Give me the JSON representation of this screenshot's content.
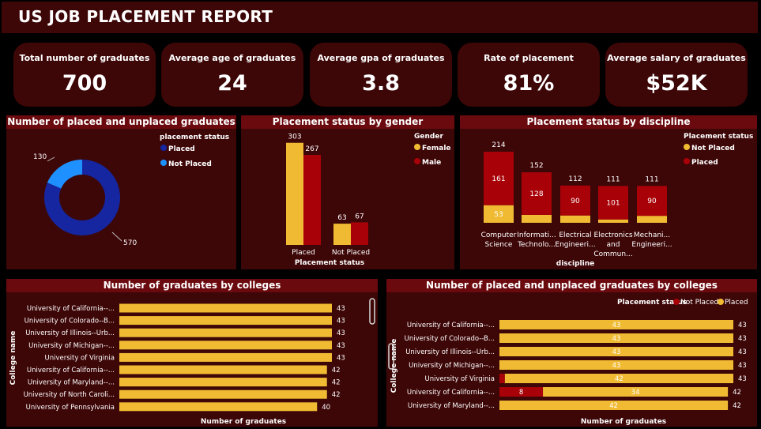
{
  "report_title": "US JOB PLACEMENT REPORT",
  "kpis": [
    {
      "label": "Total number of graduates",
      "value": "700"
    },
    {
      "label": "Average age of graduates",
      "value": "24"
    },
    {
      "label": "Average gpa of graduates",
      "value": "3.8"
    },
    {
      "label": "Rate of placement",
      "value": "81%"
    },
    {
      "label": "Average salary of graduates",
      "value": "$52K"
    }
  ],
  "colors": {
    "placed_donut": "#1526a0",
    "not_placed_donut": "#1e90ff",
    "female": "#f0bb33",
    "male": "#a80208",
    "panel_bg": "#3d0607",
    "title_bg": "#6b0a0e"
  },
  "chart_data": [
    {
      "type": "pie",
      "title": "Number of placed and unplaced graduates",
      "legend_title": "placement status",
      "legend_position": "right",
      "labels": [
        "Placed",
        "Not Placed"
      ],
      "values": [
        570,
        130
      ],
      "value_labels": [
        "570",
        "130"
      ]
    },
    {
      "type": "bar",
      "title": "Placement status by gender",
      "xlabel": "Placement status",
      "legend_title": "Gender",
      "legend_position": "right",
      "categories": [
        "Placed",
        "Not Placed"
      ],
      "series": [
        {
          "name": "Female",
          "values": [
            303,
            63
          ],
          "value_labels": [
            "303",
            "63"
          ]
        },
        {
          "name": "Male",
          "values": [
            267,
            67
          ],
          "value_labels": [
            "267",
            "67"
          ]
        }
      ],
      "ylim": [
        0,
        330
      ]
    },
    {
      "type": "bar",
      "stacked": true,
      "title": "Placement status by discipline",
      "xlabel": "discipline",
      "legend_title": "Placement status",
      "legend_position": "top-right",
      "legend": [
        "Not Placed",
        "Placed"
      ],
      "categories": [
        [
          "Computer",
          "Science"
        ],
        [
          "Informati...",
          "Technolo..."
        ],
        [
          "Electrical",
          "Engineeri..."
        ],
        [
          "Electronics",
          "and",
          "Commun..."
        ],
        [
          "Mechani...",
          "Engineeri..."
        ]
      ],
      "totals": [
        214,
        152,
        112,
        111,
        111
      ],
      "total_labels": [
        "214",
        "152",
        "112",
        "111",
        "111"
      ],
      "series": [
        {
          "name": "Not Placed",
          "values": [
            53,
            24,
            22,
            10,
            21
          ],
          "value_labels": [
            "53",
            "",
            "",
            "",
            ""
          ]
        },
        {
          "name": "Placed",
          "values": [
            161,
            128,
            90,
            101,
            90
          ],
          "value_labels": [
            "161",
            "128",
            "90",
            "101",
            "90"
          ]
        }
      ],
      "ylim": [
        0,
        214
      ]
    },
    {
      "type": "bar",
      "orientation": "horizontal",
      "title": "Number of graduates by colleges",
      "xlabel": "Number of graduates",
      "ylabel": "College name",
      "categories": [
        "University of California--...",
        "University of Colorado--B...",
        "University of Illinois--Urb...",
        "University of Michigan--...",
        "University of Virginia",
        "University of California--...",
        "University of Maryland--...",
        "University of North Caroli...",
        "University of Pennsylvania"
      ],
      "values": [
        43,
        43,
        43,
        43,
        43,
        42,
        42,
        42,
        40
      ],
      "value_labels": [
        "43",
        "43",
        "43",
        "43",
        "43",
        "42",
        "42",
        "42",
        "40"
      ],
      "xlim": [
        0,
        43
      ]
    },
    {
      "type": "bar",
      "orientation": "horizontal",
      "stacked": true,
      "title": "Number of placed and unplaced graduates by colleges",
      "xlabel": "Number of graduates",
      "ylabel": "College name",
      "legend_title": "Placement status",
      "legend_position": "top-right",
      "legend": [
        "Not Placed",
        "Placed"
      ],
      "categories": [
        "University of California--...",
        "University of Colorado--B...",
        "University of Illinois--Urb...",
        "University of Michigan--...",
        "University of Virginia",
        "University of California--...",
        "University of Maryland--..."
      ],
      "series": [
        {
          "name": "Not Placed",
          "values": [
            0,
            0,
            0,
            0,
            1,
            8,
            0
          ],
          "value_labels": [
            "",
            "",
            "",
            "",
            "",
            "8",
            ""
          ]
        },
        {
          "name": "Placed",
          "values": [
            43,
            43,
            43,
            43,
            42,
            34,
            42
          ],
          "value_labels": [
            "43",
            "43",
            "43",
            "43",
            "42",
            "34",
            "42"
          ]
        }
      ],
      "totals": [
        43,
        43,
        43,
        43,
        43,
        42,
        42
      ],
      "total_labels": [
        "43",
        "43",
        "43",
        "43",
        "43",
        "42",
        "42"
      ],
      "xlim": [
        0,
        43
      ]
    }
  ]
}
